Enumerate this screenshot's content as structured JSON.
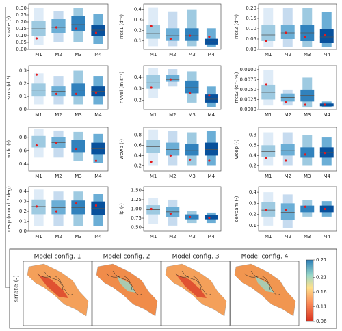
{
  "chart_data": [
    {
      "type": "boxen",
      "ylabel": "srrate (-)",
      "categories": [
        "M1",
        "M2",
        "M3",
        "M4"
      ],
      "boxes": [
        [
          0.03,
          0.1,
          0.15,
          0.21,
          0.3
        ],
        [
          0.05,
          0.12,
          0.16,
          0.22,
          0.28
        ],
        [
          0.05,
          0.13,
          0.18,
          0.24,
          0.3
        ],
        [
          0.04,
          0.1,
          0.14,
          0.18,
          0.26
        ]
      ],
      "reference": [
        0.08,
        0.16,
        0.15,
        0.12
      ],
      "ylim": [
        0,
        0.33
      ],
      "yticks": [
        {
          "value": 0,
          "label": "0.00"
        },
        0.05,
        {
          "value": 0.1,
          "label": "0.10"
        },
        0.15,
        {
          "value": 0.2,
          "label": "0.20"
        },
        0.25,
        {
          "value": 0.3,
          "label": "0.30"
        }
      ]
    },
    {
      "type": "boxen",
      "ylabel": "rrcs1 (d⁻¹)",
      "categories": [
        "M1",
        "M2",
        "M3",
        "M4"
      ],
      "boxes": [
        [
          0.05,
          0.12,
          0.17,
          0.25,
          0.42
        ],
        [
          0.05,
          0.1,
          0.15,
          0.22,
          0.38
        ],
        [
          0.05,
          0.1,
          0.15,
          0.22,
          0.4
        ],
        [
          0.04,
          0.06,
          0.09,
          0.12,
          0.22
        ]
      ],
      "reference": [
        0.24,
        0.12,
        0.15,
        0.14
      ],
      "ylim": [
        0.02,
        0.45
      ],
      "yticks": [
        0.1,
        0.2,
        0.3,
        0.4
      ]
    },
    {
      "type": "boxen",
      "ylabel": "rrcs2 (d⁻¹)",
      "categories": [
        "M1",
        "M2",
        "M3",
        "M4"
      ],
      "boxes": [
        [
          0.01,
          0.04,
          0.07,
          0.12,
          0.2
        ],
        [
          0.01,
          0.05,
          0.08,
          0.12,
          0.2
        ],
        [
          0.01,
          0.04,
          0.08,
          0.12,
          0.2
        ],
        [
          0.01,
          0.03,
          0.06,
          0.1,
          0.18
        ]
      ],
      "reference": [
        0.04,
        0.08,
        0.06,
        0.07
      ],
      "ylim": [
        0,
        0.22
      ],
      "yticks": [
        {
          "value": 0,
          "label": "0.00"
        },
        0.05,
        {
          "value": 0.1,
          "label": "0.10"
        },
        0.15,
        {
          "value": 0.2,
          "label": "0.20"
        }
      ]
    },
    {
      "type": "boxen",
      "ylabel": "srrcs (d⁻¹)",
      "categories": [
        "M1",
        "M2",
        "M3",
        "M4"
      ],
      "boxes": [
        [
          0.04,
          0.1,
          0.15,
          0.2,
          0.28
        ],
        [
          0.04,
          0.1,
          0.14,
          0.18,
          0.26
        ],
        [
          0.04,
          0.1,
          0.15,
          0.2,
          0.3
        ],
        [
          0.04,
          0.1,
          0.14,
          0.18,
          0.26
        ]
      ],
      "reference": [
        0.27,
        0.12,
        0.12,
        0.13
      ],
      "ylim": [
        0,
        0.34
      ],
      "yticks": [
        {
          "value": 0,
          "label": "0.0"
        },
        0.1,
        0.2,
        0.3
      ]
    },
    {
      "type": "boxen",
      "ylabel": "rivvel (m s⁻¹)",
      "categories": [
        "M1",
        "M2",
        "M3",
        "M4"
      ],
      "boxes": [
        [
          0.22,
          0.3,
          0.35,
          0.42,
          0.48
        ],
        [
          0.32,
          0.36,
          0.38,
          0.42,
          0.47
        ],
        [
          0.18,
          0.26,
          0.31,
          0.37,
          0.45
        ],
        [
          0.14,
          0.18,
          0.21,
          0.25,
          0.32
        ]
      ],
      "reference": [
        0.31,
        0.38,
        0.26,
        0.24
      ],
      "ylim": [
        0.12,
        0.5
      ],
      "yticks": [
        0.2,
        0.3,
        0.4
      ]
    },
    {
      "type": "boxen",
      "ylabel": "rrcs3 (d⁻¹ %)",
      "categories": [
        "M1",
        "M2",
        "M3",
        "M4"
      ],
      "boxes": [
        [
          0.001,
          0.0025,
          0.0043,
          0.0062,
          0.0098
        ],
        [
          0.001,
          0.002,
          0.003,
          0.004,
          0.005
        ],
        [
          0.0005,
          0.002,
          0.0035,
          0.005,
          0.008
        ],
        [
          0.0005,
          0.0008,
          0.0011,
          0.0015,
          0.002
        ]
      ],
      "reference": [
        0.0062,
        0.0018,
        0.0012,
        0.0012
      ],
      "ylim": [
        0,
        0.011
      ],
      "yticks": [
        {
          "value": 0,
          "label": "0.0000"
        },
        0.0025,
        {
          "value": 0.005,
          "label": "0.0050"
        },
        0.0075,
        {
          "value": 0.01,
          "label": "0.0100"
        }
      ]
    },
    {
      "type": "boxen",
      "ylabel": "wcfc (-)",
      "categories": [
        "M1",
        "M2",
        "M3",
        "M4"
      ],
      "boxes": [
        [
          0.5,
          0.65,
          0.73,
          0.82,
          0.92
        ],
        [
          0.5,
          0.64,
          0.72,
          0.8,
          0.9
        ],
        [
          0.45,
          0.58,
          0.67,
          0.76,
          0.88
        ],
        [
          0.42,
          0.55,
          0.63,
          0.72,
          0.85
        ]
      ],
      "reference": [
        0.68,
        0.72,
        0.62,
        0.45
      ],
      "ylim": [
        0.3,
        0.95
      ],
      "yticks": [
        0.4,
        0.6,
        0.8
      ]
    },
    {
      "type": "boxen",
      "ylabel": "wcwp (-)",
      "categories": [
        "M1",
        "M2",
        "M3",
        "M4"
      ],
      "boxes": [
        [
          0.2,
          0.45,
          0.57,
          0.7,
          0.9
        ],
        [
          0.2,
          0.4,
          0.52,
          0.65,
          0.88
        ],
        [
          0.2,
          0.4,
          0.5,
          0.62,
          0.85
        ],
        [
          0.2,
          0.4,
          0.52,
          0.65,
          0.88
        ]
      ],
      "reference": [
        0.28,
        0.4,
        0.32,
        0.3
      ],
      "ylim": [
        0.1,
        0.95
      ],
      "yticks": [
        0.2,
        0.4,
        0.6,
        0.8
      ]
    },
    {
      "type": "boxen",
      "ylabel": "wcep (-)",
      "categories": [
        "M1",
        "M2",
        "M3",
        "M4"
      ],
      "boxes": [
        [
          0.2,
          0.38,
          0.48,
          0.6,
          0.85
        ],
        [
          0.2,
          0.4,
          0.5,
          0.62,
          0.85
        ],
        [
          0.2,
          0.36,
          0.45,
          0.56,
          0.8
        ],
        [
          0.2,
          0.36,
          0.46,
          0.56,
          0.75
        ]
      ],
      "reference": [
        0.35,
        0.3,
        0.42,
        0.45
      ],
      "ylim": [
        0.1,
        0.95
      ],
      "yticks": [
        0.2,
        0.4,
        0.6,
        0.8
      ]
    },
    {
      "type": "boxen",
      "ylabel": "cevp (mm d⁻¹ deg)",
      "categories": [
        "M1",
        "M2",
        "M3",
        "M4"
      ],
      "boxes": [
        [
          0.05,
          0.17,
          0.25,
          0.32,
          0.42
        ],
        [
          0.05,
          0.17,
          0.24,
          0.31,
          0.4
        ],
        [
          0.05,
          0.17,
          0.24,
          0.31,
          0.4
        ],
        [
          0.05,
          0.16,
          0.23,
          0.3,
          0.38
        ]
      ],
      "reference": [
        0.25,
        0.2,
        0.28,
        0.26
      ],
      "ylim": [
        0,
        0.45
      ],
      "yticks": [
        {
          "value": 0,
          "label": "0.0"
        },
        0.1,
        0.2,
        0.3,
        0.4
      ]
    },
    {
      "type": "boxen",
      "ylabel": "lp (-)",
      "categories": [
        "M1",
        "M2",
        "M3",
        "M4"
      ],
      "boxes": [
        [
          0.6,
          0.85,
          0.98,
          1.1,
          1.3
        ],
        [
          0.55,
          0.78,
          0.92,
          1.05,
          1.25
        ],
        [
          0.62,
          0.72,
          0.78,
          0.85,
          0.95
        ],
        [
          0.62,
          0.72,
          0.78,
          0.84,
          0.9
        ]
      ],
      "reference": [
        1.0,
        0.87,
        0.78,
        0.76
      ],
      "ylim": [
        0.4,
        1.6
      ],
      "yticks": [
        {
          "value": 0.5,
          "label": "0.50"
        },
        0.75,
        {
          "value": 1,
          "label": "1.00"
        },
        1.25,
        {
          "value": 1.5,
          "label": "1.50"
        }
      ]
    },
    {
      "type": "boxen",
      "ylabel": "cevpam (-)",
      "categories": [
        "M1",
        "M2",
        "M3",
        "M4"
      ],
      "boxes": [
        [
          0.1,
          0.18,
          0.24,
          0.31,
          0.4
        ],
        [
          0.08,
          0.15,
          0.22,
          0.3,
          0.38
        ],
        [
          0.18,
          0.22,
          0.25,
          0.28,
          0.33
        ],
        [
          0.18,
          0.22,
          0.25,
          0.28,
          0.32
        ]
      ],
      "reference": [
        0.24,
        0.24,
        0.27,
        0.25
      ],
      "ylim": [
        0.05,
        0.45
      ],
      "yticks": [
        0.1,
        0.2,
        0.3,
        0.4
      ]
    },
    {
      "type": "map",
      "ylabel": "srrate (-)",
      "titles": [
        "Model config. 1",
        "Model config. 2",
        "Model config. 3",
        "Model config. 4"
      ],
      "clim": [
        0.06,
        0.27
      ],
      "cticks": [
        0.06,
        0.11,
        0.16,
        0.21,
        0.27
      ]
    }
  ]
}
